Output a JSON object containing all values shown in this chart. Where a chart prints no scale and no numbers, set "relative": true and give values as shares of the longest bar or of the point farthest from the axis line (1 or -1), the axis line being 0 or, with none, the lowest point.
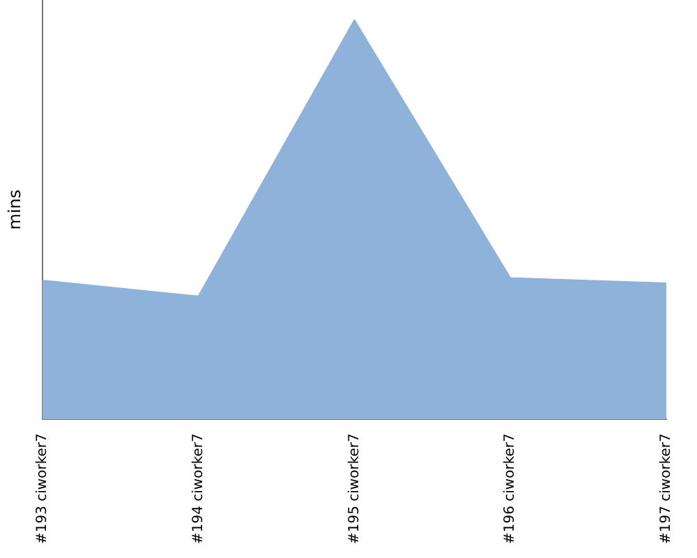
{
  "chart_data": {
    "type": "area",
    "ylabel": "mins",
    "relative": true,
    "categories": [
      "#193 ciworker7",
      "#194 ciworker7",
      "#195 ciworker7",
      "#196 ciworker7",
      "#197 ciworker7"
    ],
    "series": [
      {
        "color": "#8fb2da",
        "values": [
          0.348,
          0.308,
          1,
          0.354,
          0.341
        ]
      }
    ],
    "grid": false,
    "legend": false,
    "marker": "none"
  }
}
